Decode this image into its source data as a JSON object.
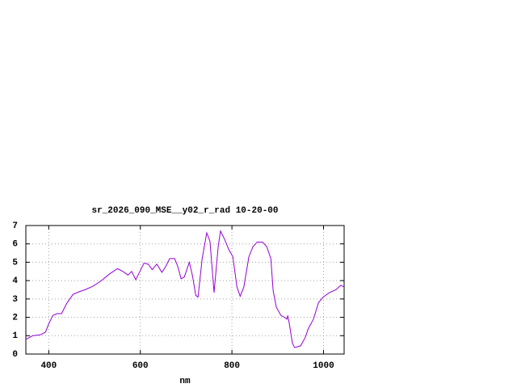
{
  "chart_data": {
    "type": "line",
    "title": "sr_2026_090_MSE__y02_r_rad 10-20-00",
    "x_label": "nm",
    "x": [
      350,
      365,
      382,
      393,
      400,
      409,
      418,
      428,
      439,
      453,
      467,
      479,
      497,
      515,
      532,
      550,
      562,
      573,
      581,
      590,
      597,
      608,
      617,
      626,
      636,
      647,
      655,
      664,
      675,
      682,
      689,
      696,
      707,
      714,
      721,
      726,
      735,
      745,
      752,
      761,
      770,
      775,
      784,
      793,
      802,
      811,
      818,
      826,
      837,
      846,
      855,
      867,
      876,
      885,
      890,
      897,
      907,
      915,
      920,
      922,
      925,
      932,
      937,
      950,
      960,
      967,
      978,
      989,
      999,
      1013,
      1027,
      1038,
      1045
    ],
    "series": [
      {
        "color": "#9400d3",
        "values": [
          0.8,
          1.0,
          1.05,
          1.2,
          1.65,
          2.1,
          2.2,
          2.2,
          2.75,
          3.25,
          3.4,
          3.5,
          3.7,
          4.0,
          4.35,
          4.65,
          4.5,
          4.3,
          4.5,
          4.05,
          4.4,
          4.95,
          4.9,
          4.6,
          4.9,
          4.45,
          4.75,
          5.2,
          5.2,
          4.75,
          4.1,
          4.2,
          5.0,
          4.25,
          3.2,
          3.1,
          5.2,
          6.6,
          6.15,
          3.35,
          5.85,
          6.7,
          6.25,
          5.7,
          5.3,
          3.65,
          3.15,
          3.65,
          5.3,
          5.85,
          6.1,
          6.1,
          5.85,
          5.2,
          3.45,
          2.55,
          2.1,
          2.0,
          1.9,
          2.1,
          1.7,
          0.6,
          0.35,
          0.45,
          0.9,
          1.4,
          1.9,
          2.8,
          3.1,
          3.35,
          3.5,
          3.75,
          3.65
        ]
      }
    ],
    "xlim": [
      350,
      1045
    ],
    "xticks": [
      400,
      600,
      800,
      1000
    ],
    "ylim": [
      0,
      7
    ],
    "yticks": [
      0,
      1,
      2,
      3,
      4,
      5,
      6,
      7
    ],
    "grid": true
  }
}
